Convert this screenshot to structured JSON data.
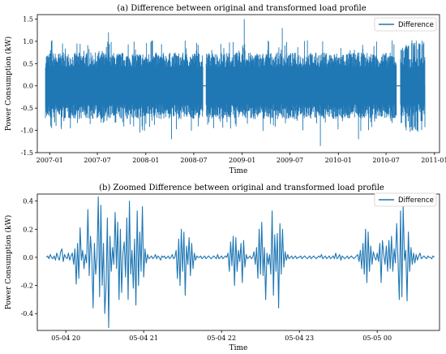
{
  "chart_data": [
    {
      "type": "line",
      "title": "(a) Difference between original and transformed load profile",
      "xlabel": "Time",
      "ylabel": "Power Consumption (kW)",
      "xlim": [
        "2006-11-15",
        "2011-01-20"
      ],
      "ylim": [
        -1.5,
        1.6
      ],
      "x_ticks": [
        "2007-01",
        "2007-07",
        "2008-01",
        "2008-07",
        "2009-01",
        "2009-07",
        "2010-01",
        "2010-07",
        "2011-01"
      ],
      "y_ticks": [
        -1.5,
        -1.0,
        -0.5,
        0.0,
        0.5,
        1.0,
        1.5
      ],
      "legend": {
        "position": "top-right",
        "entries": [
          "Difference"
        ]
      },
      "series": [
        {
          "name": "Difference",
          "color": "#1f77b4",
          "segments": [
            {
              "start": "2006-12-16",
              "end": "2008-08-05",
              "band": [
                -0.75,
                0.75
              ],
              "peaks": [
                0.95,
                1.2,
                -1.05,
                -1.2
              ]
            },
            {
              "start": "2008-08-17",
              "end": "2010-08-10",
              "band": [
                -0.75,
                0.75
              ],
              "peaks": [
                1.5,
                1.3,
                -1.35,
                -1.2
              ]
            },
            {
              "start": "2010-08-25",
              "end": "2010-11-26",
              "band": [
                -0.7,
                0.65
              ],
              "peaks": [
                0.9,
                -1.0
              ]
            }
          ],
          "gaps": [
            {
              "start": "2008-08-05",
              "end": "2008-08-17",
              "value": 0.0
            },
            {
              "start": "2010-08-10",
              "end": "2010-08-25",
              "value": 0.0
            }
          ]
        }
      ]
    },
    {
      "type": "line",
      "title": "(b) Zoomed Difference between original and transformed load profile",
      "xlabel": "Time",
      "ylabel": "Power Consumption (kW)",
      "xlim": [
        "05-04 19:38",
        "05-05 00:48"
      ],
      "ylim": [
        -0.52,
        0.45
      ],
      "x_ticks": [
        "05-04 20",
        "05-04 21",
        "05-04 22",
        "05-04 23",
        "05-05 00"
      ],
      "y_ticks": [
        -0.4,
        -0.2,
        0.0,
        0.2,
        0.4
      ],
      "legend": {
        "position": "top-right",
        "entries": [
          "Difference"
        ]
      },
      "series": [
        {
          "name": "Difference",
          "color": "#1f77b4",
          "x_start_minutes_after_tick0": -15,
          "step_minutes": 1,
          "values": [
            0.0,
            0.01,
            -0.01,
            0.02,
            0.0,
            -0.01,
            0.01,
            -0.02,
            0.03,
            0.0,
            -0.02,
            0.04,
            0.06,
            -0.03,
            0.02,
            0.0,
            -0.01,
            0.03,
            -0.02,
            0.01,
            0.03,
            -0.05,
            0.06,
            -0.19,
            0.1,
            -0.15,
            0.21,
            -0.02,
            0.05,
            -0.08,
            0.02,
            -0.04,
            0.34,
            -0.13,
            0.15,
            0.0,
            -0.36,
            0.1,
            -0.12,
            0.0,
            0.43,
            -0.28,
            0.37,
            -0.2,
            0.1,
            -0.4,
            -0.2,
            0.28,
            -0.5,
            0.15,
            -0.1,
            0.07,
            -0.05,
            0.32,
            -0.08,
            0.25,
            -0.3,
            0.2,
            -0.25,
            0.03,
            0.11,
            -0.14,
            0.28,
            -0.3,
            0.4,
            -0.12,
            0.05,
            -0.22,
            0.13,
            -0.34,
            0.33,
            -0.2,
            0.18,
            -0.1,
            0.36,
            -0.14,
            0.06,
            -0.04,
            0.02,
            -0.01,
            0.0,
            0.01,
            -0.01,
            0.0,
            0.02,
            -0.01,
            0.01,
            0.0,
            -0.02,
            0.01,
            0.0,
            0.01,
            -0.01,
            0.0,
            0.01,
            -0.01,
            0.0,
            0.02,
            -0.01,
            0.0,
            0.05,
            -0.15,
            0.13,
            -0.2,
            0.2,
            -0.1,
            0.18,
            -0.27,
            0.08,
            -0.05,
            0.14,
            -0.13,
            0.1,
            -0.08,
            0.03,
            -0.02,
            0.01,
            0.0,
            0.0,
            0.01,
            -0.01,
            0.0,
            0.01,
            -0.01,
            0.0,
            0.01,
            0.0,
            -0.01,
            0.0,
            0.01,
            0.0,
            -0.01,
            0.02,
            -0.01,
            0.0,
            0.01,
            -0.01,
            0.0,
            0.01,
            0.0,
            0.03,
            -0.1,
            0.11,
            -0.06,
            0.15,
            -0.2,
            0.14,
            -0.1,
            0.05,
            -0.03,
            0.1,
            -0.18,
            0.12,
            -0.07,
            0.02,
            -0.01,
            0.0,
            0.01,
            -0.01,
            0.0,
            0.04,
            -0.05,
            0.07,
            -0.15,
            0.2,
            -0.12,
            0.25,
            -0.13,
            0.07,
            -0.3,
            0.03,
            -0.05,
            0.02,
            -0.12,
            0.33,
            -0.27,
            0.16,
            -0.1,
            0.17,
            -0.36,
            0.24,
            -0.12,
            0.2,
            -0.07,
            0.04,
            -0.02,
            0.02,
            -0.01,
            0.0,
            0.01,
            -0.01,
            0.0,
            0.01,
            -0.01,
            0.0,
            0.0,
            0.01,
            -0.01,
            0.0,
            0.01,
            0.0,
            -0.01,
            0.0,
            0.01,
            -0.01,
            0.0,
            0.01,
            0.0,
            -0.01,
            0.0,
            0.01,
            0.0,
            0.02,
            -0.01,
            0.0,
            0.01,
            -0.01,
            0.0,
            0.01,
            -0.01,
            0.0,
            0.01,
            -0.01,
            0.03,
            -0.01,
            0.0,
            0.02,
            -0.02,
            0.01,
            0.0,
            -0.01,
            0.0,
            0.01,
            -0.01,
            0.0,
            0.01,
            0.0,
            -0.01,
            0.0,
            0.01,
            0.02,
            -0.03,
            0.05,
            -0.08,
            0.1,
            -0.12,
            0.2,
            -0.18,
            0.18,
            -0.1,
            0.08,
            -0.05,
            0.04,
            0.0,
            -0.02,
            0.03,
            -0.03,
            0.1,
            -0.18,
            0.12,
            0.02,
            -0.05,
            0.08,
            -0.1,
            0.12,
            -0.08,
            0.15,
            -0.1,
            0.06,
            -0.04,
            0.24,
            -0.02,
            -0.3,
            0.33,
            -0.28,
            0.36,
            -0.02,
            0.05,
            -0.31,
            0.18,
            -0.1,
            0.07,
            -0.05,
            0.03,
            -0.04,
            0.02,
            -0.02,
            0.01,
            0.03,
            -0.01,
            0.0,
            0.01,
            0.0,
            -0.01,
            0.01,
            0.0,
            0.0,
            -0.01,
            0.01,
            0.0
          ]
        }
      ]
    }
  ]
}
